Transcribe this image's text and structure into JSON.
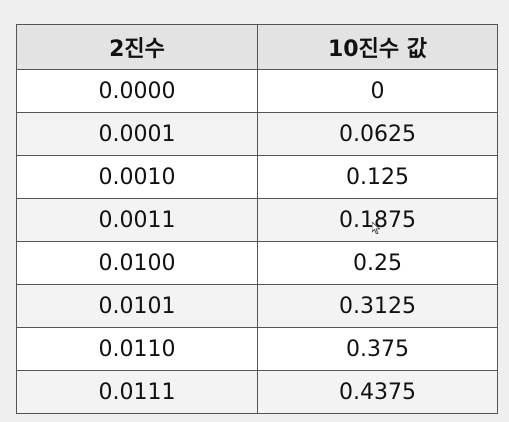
{
  "table": {
    "headers": [
      "2진수",
      "10진수 값"
    ],
    "rows": [
      [
        "0.0000",
        "0"
      ],
      [
        "0.0001",
        "0.0625"
      ],
      [
        "0.0010",
        "0.125"
      ],
      [
        "0.0011",
        "0.1875"
      ],
      [
        "0.0100",
        "0.25"
      ],
      [
        "0.0101",
        "0.3125"
      ],
      [
        "0.0110",
        "0.375"
      ],
      [
        "0.0111",
        "0.4375"
      ]
    ]
  }
}
